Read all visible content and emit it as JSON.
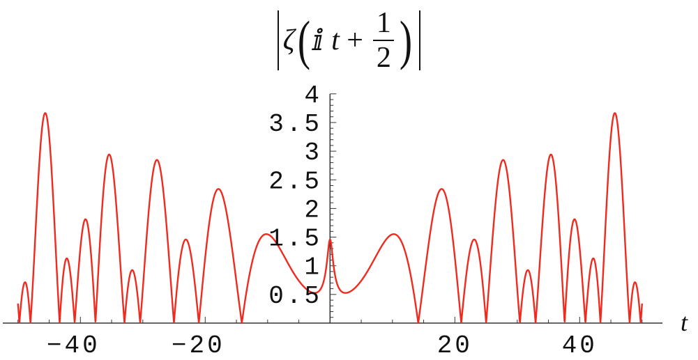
{
  "chart_data": {
    "type": "line",
    "title": {
      "abs_open": "|",
      "func": "ζ",
      "open_paren": "(",
      "imag_unit": "ⅈ",
      "var": "t",
      "plus": "+",
      "numerator": "1",
      "denominator": "2",
      "close_paren": ")",
      "abs_close": "|"
    },
    "function": "|ζ(ⅈ t + 1/2)|",
    "xlabel": "t",
    "ylabel": "",
    "xlim": [
      -50,
      50
    ],
    "ylim": [
      0,
      4
    ],
    "x_ticks": [
      {
        "value": -40,
        "label": "-40"
      },
      {
        "value": -20,
        "label": "-20"
      },
      {
        "value": 20,
        "label": "20"
      },
      {
        "value": 40,
        "label": "40"
      }
    ],
    "y_ticks": [
      {
        "value": 0.5,
        "label": "0.5"
      },
      {
        "value": 1,
        "label": "1"
      },
      {
        "value": 1.5,
        "label": "1.5"
      },
      {
        "value": 2,
        "label": "2"
      },
      {
        "value": 2.5,
        "label": "2.5"
      },
      {
        "value": 3,
        "label": "3"
      },
      {
        "value": 3.5,
        "label": "3.5"
      },
      {
        "value": 4,
        "label": "4"
      }
    ],
    "zeros": [
      -49.7738,
      -48.0052,
      -43.3271,
      -40.9187,
      -37.5862,
      -32.9351,
      -30.4249,
      -25.0109,
      -21.022,
      -14.1347,
      14.1347,
      21.022,
      25.0109,
      30.4249,
      32.9351,
      37.5862,
      40.9187,
      43.3271,
      48.0052,
      49.7738
    ],
    "value_at_0": 1.46,
    "approx_peaks": [
      {
        "t": 45.6,
        "y": 3.65
      },
      {
        "t": 35.6,
        "y": 2.94
      },
      {
        "t": 27.7,
        "y": 2.84
      },
      {
        "t": 17.8,
        "y": 2.37
      },
      {
        "t": 39.0,
        "y": 1.8
      },
      {
        "t": 10.0,
        "y": 1.55
      },
      {
        "t": 23.2,
        "y": 1.46
      },
      {
        "t": 42.3,
        "y": 1.13
      },
      {
        "t": 31.6,
        "y": 0.93
      },
      {
        "t": 49.0,
        "y": 0.72
      }
    ],
    "grid": false,
    "legend": "none",
    "series_color": "#f02a1e",
    "axis_color": "#333333"
  }
}
